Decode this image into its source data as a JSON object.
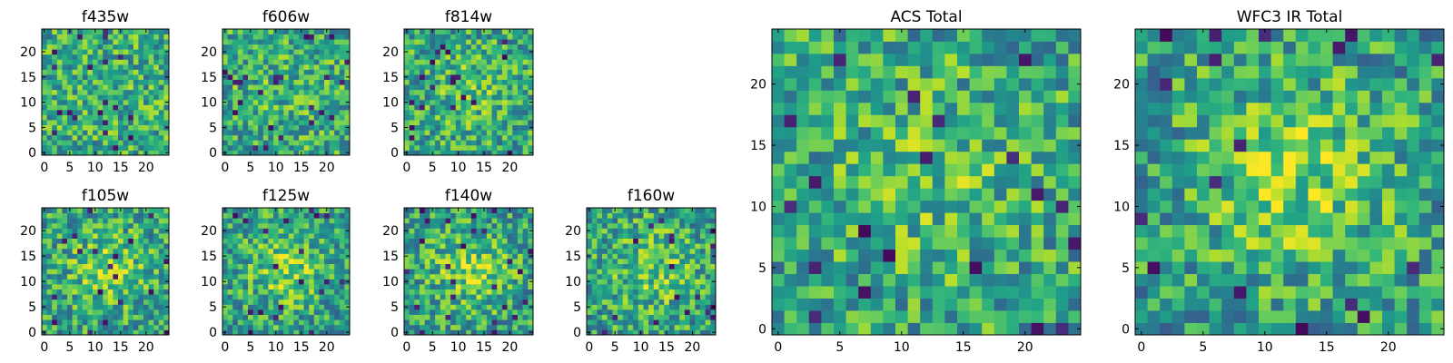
{
  "chart_data": [
    {
      "type": "heatmap",
      "title": "f435w",
      "shape": [
        25,
        25
      ],
      "colormap": "viridis",
      "xticks": [
        0,
        5,
        10,
        15,
        20
      ],
      "yticks": [
        0,
        5,
        10,
        15,
        20
      ],
      "center_peak": 0.0,
      "seed": 11
    },
    {
      "type": "heatmap",
      "title": "f606w",
      "shape": [
        25,
        25
      ],
      "colormap": "viridis",
      "xticks": [
        0,
        5,
        10,
        15,
        20
      ],
      "yticks": [
        0,
        5,
        10,
        15,
        20
      ],
      "center_peak": 0.1,
      "seed": 23
    },
    {
      "type": "heatmap",
      "title": "f814w",
      "shape": [
        25,
        25
      ],
      "colormap": "viridis",
      "xticks": [
        0,
        5,
        10,
        15,
        20
      ],
      "yticks": [
        0,
        5,
        10,
        15,
        20
      ],
      "center_peak": 0.25,
      "seed": 37
    },
    {
      "type": "heatmap",
      "title": "f105w",
      "shape": [
        25,
        25
      ],
      "colormap": "viridis",
      "xticks": [
        0,
        5,
        10,
        15,
        20
      ],
      "yticks": [
        0,
        5,
        10,
        15,
        20
      ],
      "center_peak": 0.5,
      "seed": 41
    },
    {
      "type": "heatmap",
      "title": "f125w",
      "shape": [
        25,
        25
      ],
      "colormap": "viridis",
      "xticks": [
        0,
        5,
        10,
        15,
        20
      ],
      "yticks": [
        0,
        5,
        10,
        15,
        20
      ],
      "center_peak": 0.55,
      "seed": 53
    },
    {
      "type": "heatmap",
      "title": "f140w",
      "shape": [
        25,
        25
      ],
      "colormap": "viridis",
      "xticks": [
        0,
        5,
        10,
        15,
        20
      ],
      "yticks": [
        0,
        5,
        10,
        15,
        20
      ],
      "center_peak": 0.55,
      "seed": 67
    },
    {
      "type": "heatmap",
      "title": "f160w",
      "shape": [
        25,
        25
      ],
      "colormap": "viridis",
      "xticks": [
        0,
        5,
        10,
        15,
        20
      ],
      "yticks": [
        0,
        5,
        10,
        15,
        20
      ],
      "center_peak": 0.4,
      "seed": 79
    },
    {
      "type": "heatmap",
      "title": "ACS Total",
      "shape": [
        25,
        25
      ],
      "colormap": "viridis",
      "xticks": [
        0,
        5,
        10,
        15,
        20
      ],
      "yticks": [
        0,
        5,
        10,
        15,
        20
      ],
      "center_peak": 0.25,
      "seed": 83
    },
    {
      "type": "heatmap",
      "title": "WFC3 IR Total",
      "shape": [
        25,
        25
      ],
      "colormap": "viridis",
      "xticks": [
        0,
        5,
        10,
        15,
        20
      ],
      "yticks": [
        0,
        5,
        10,
        15,
        20
      ],
      "center_peak": 0.6,
      "seed": 97
    }
  ]
}
